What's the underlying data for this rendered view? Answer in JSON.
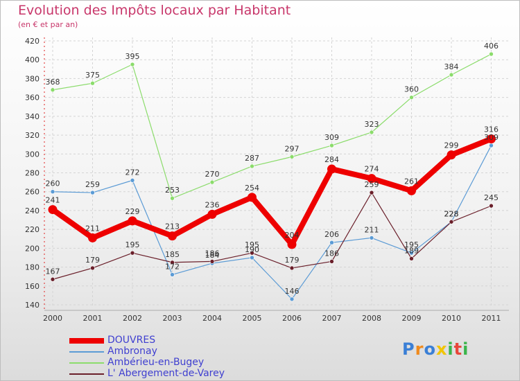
{
  "header": {
    "title": "Evolution des Impôts locaux par Habitant",
    "subtitle": "(en € et par an)"
  },
  "chart_data": {
    "type": "line",
    "title": "Evolution des Impôts locaux par Habitant",
    "subtitle": "(en € et par an)",
    "xlabel": "",
    "ylabel": "",
    "ylim": [
      140,
      420
    ],
    "y_ticks": [
      140,
      160,
      180,
      200,
      220,
      240,
      260,
      280,
      300,
      320,
      340,
      360,
      380,
      400,
      420
    ],
    "grid": true,
    "legend_position": "bottom-left",
    "categories": [
      "2000",
      "2001",
      "2002",
      "2003",
      "2004",
      "2005",
      "2006",
      "2007",
      "2008",
      "2009",
      "2010",
      "2011"
    ],
    "series": [
      {
        "name": "Ambérieu-en-Bugey",
        "color": "#8bdc6b",
        "values": [
          368,
          375,
          395,
          253,
          270,
          287,
          297,
          309,
          323,
          360,
          384,
          406
        ]
      },
      {
        "name": "Ambronay",
        "color": "#5b9bd5",
        "values": [
          260,
          259,
          272,
          172,
          184,
          190,
          146,
          206,
          211,
          195,
          228,
          309
        ]
      },
      {
        "name": "L' Abergement-de-Varey",
        "color": "#6a1f2a",
        "values": [
          167,
          179,
          195,
          185,
          186,
          195,
          179,
          186,
          259,
          189,
          228,
          245
        ]
      },
      {
        "name": "DOUVRES",
        "color": "#ee0000",
        "values": [
          241,
          211,
          229,
          213,
          236,
          254,
          204,
          284,
          274,
          261,
          299,
          316
        ]
      }
    ]
  },
  "legend": {
    "items": [
      {
        "label": "DOUVRES",
        "color": "#ee0000"
      },
      {
        "label": "Ambronay",
        "color": "#5b9bd5"
      },
      {
        "label": "Ambérieu-en-Bugey",
        "color": "#8bdc6b"
      },
      {
        "label": "L' Abergement-de-Varey",
        "color": "#6a1f2a"
      }
    ]
  },
  "logo": {
    "letters": [
      "P",
      "r",
      "o",
      "x",
      "i",
      "t",
      "i"
    ],
    "colors": [
      "#3a7fd6",
      "#f08a1c",
      "#3a7fd6",
      "#f2c500",
      "#3ab54a",
      "#e8473b",
      "#3ab54a"
    ]
  }
}
